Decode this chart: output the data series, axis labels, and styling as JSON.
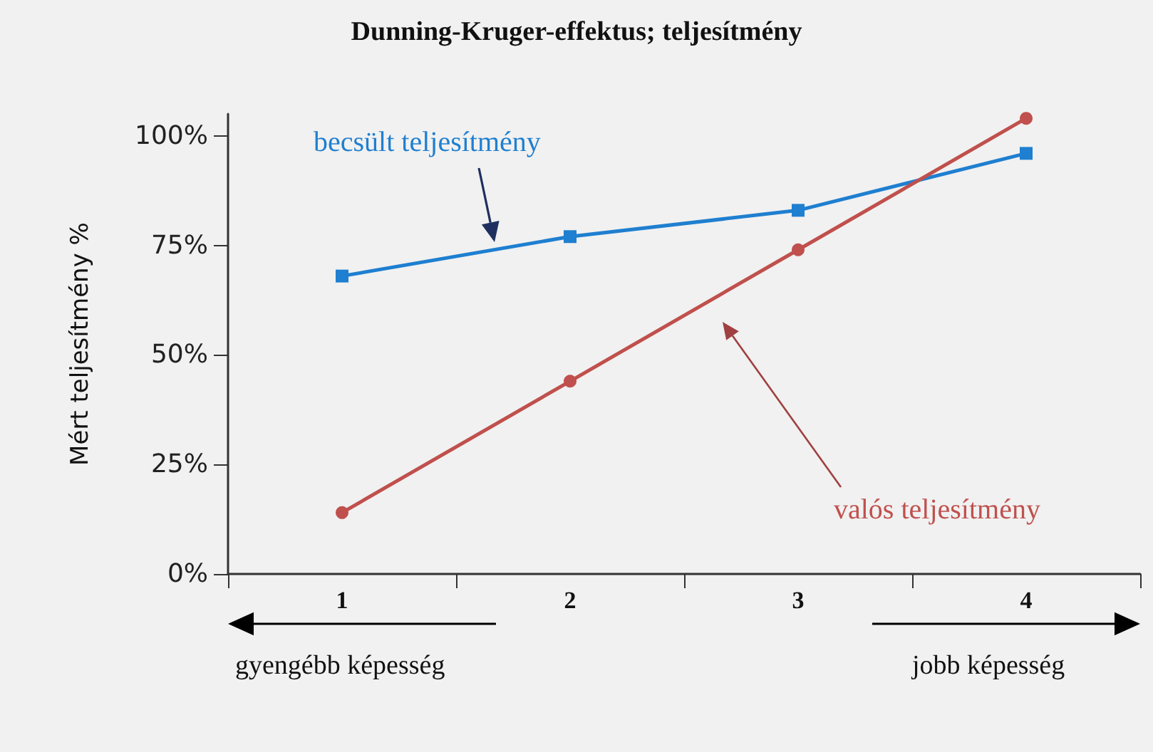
{
  "chart_data": {
    "type": "line",
    "title": "Dunning-Kruger-effektus; teljesítmény",
    "ylabel": "Mért teljesítmény %",
    "categories": [
      "1",
      "2",
      "3",
      "4"
    ],
    "series": [
      {
        "name": "becsült teljesítmény",
        "color": "#1f7fd0",
        "marker": "square",
        "values": [
          68,
          77,
          83,
          96
        ]
      },
      {
        "name": "valós teljesítmény",
        "color": "#c0504d",
        "marker": "circle",
        "values": [
          14,
          44,
          74,
          104
        ]
      }
    ],
    "ylim": [
      0,
      105
    ],
    "yticks": [
      {
        "value": 0,
        "label": "0%"
      },
      {
        "value": 25,
        "label": "25%"
      },
      {
        "value": 50,
        "label": "50%"
      },
      {
        "value": 75,
        "label": "75%"
      },
      {
        "value": 100,
        "label": "100%"
      }
    ],
    "annotations": [
      "gyengébb képesség",
      "jobb képesség"
    ],
    "grid": false
  }
}
